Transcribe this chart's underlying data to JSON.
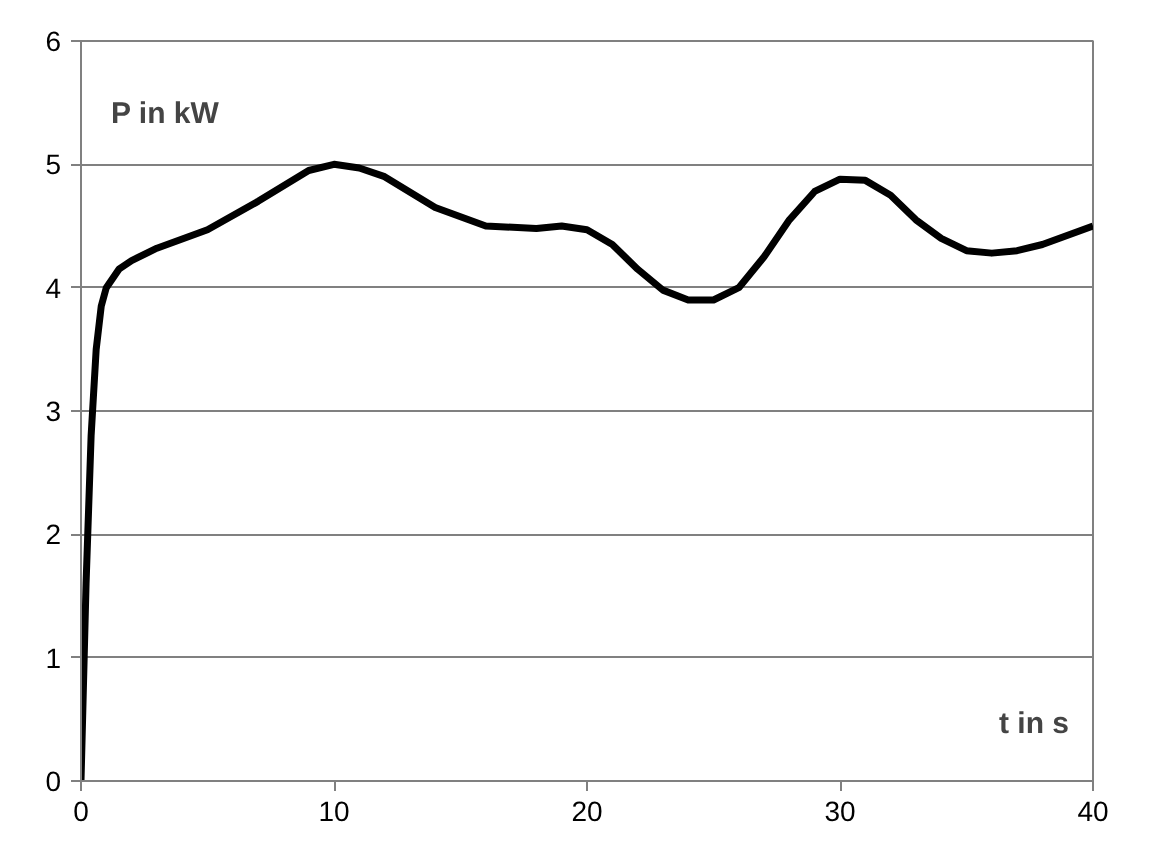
{
  "chart_data": {
    "type": "line",
    "xlabel": "t in s",
    "ylabel": "P in kW",
    "x": [
      0,
      0.2,
      0.4,
      0.6,
      0.8,
      1,
      1.5,
      2,
      3,
      5,
      7,
      9,
      10,
      11,
      12,
      14,
      16,
      18,
      19,
      20,
      21,
      22,
      23,
      24,
      25,
      26,
      27,
      28,
      29,
      30,
      31,
      32,
      33,
      34,
      35,
      36,
      37,
      38,
      40
    ],
    "series": [
      {
        "color": "#000000",
        "values": [
          0,
          1.6,
          2.8,
          3.5,
          3.85,
          4.0,
          4.15,
          4.22,
          4.32,
          4.47,
          4.7,
          4.95,
          5.0,
          4.97,
          4.9,
          4.65,
          4.5,
          4.48,
          4.5,
          4.47,
          4.35,
          4.15,
          3.98,
          3.9,
          3.9,
          4.0,
          4.25,
          4.55,
          4.78,
          4.88,
          4.87,
          4.75,
          4.55,
          4.4,
          4.3,
          4.28,
          4.3,
          4.35,
          4.5
        ]
      }
    ],
    "xlim": [
      0,
      40
    ],
    "ylim": [
      0,
      6
    ],
    "xticks": [
      0,
      10,
      20,
      30,
      40
    ],
    "yticks": [
      0,
      1,
      2,
      3,
      4,
      5,
      6
    ],
    "grid": "y",
    "line_style": "solid"
  }
}
